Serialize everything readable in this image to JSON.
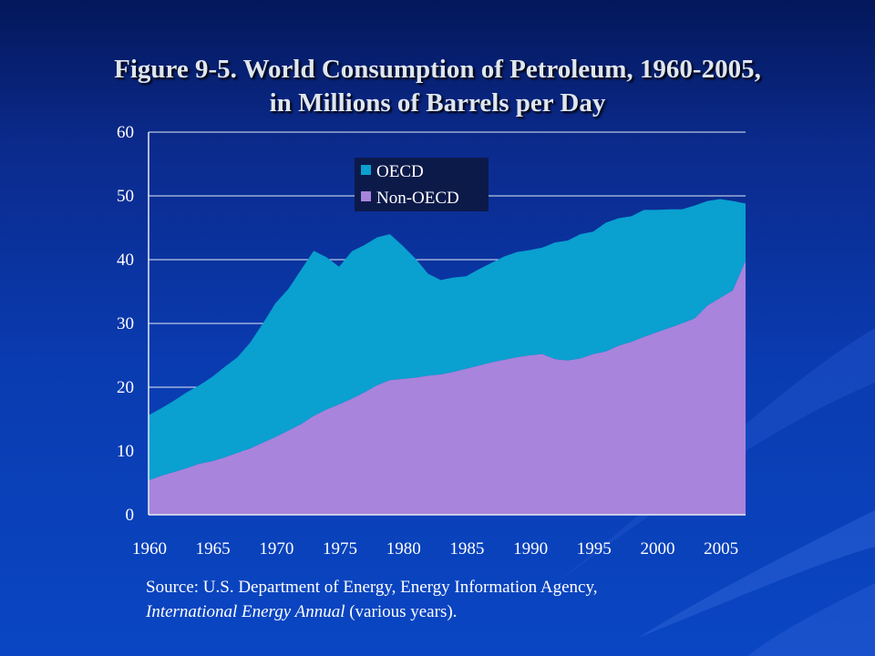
{
  "title": {
    "line1": "Figure 9-5. World Consumption of Petroleum, 1960-2005,",
    "line2": "in Millions of Barrels per Day"
  },
  "source": {
    "prefix": "Source: U.S. Department of Energy, Energy Information Agency,",
    "italic": "International Energy Annual",
    "suffix": " (various years)."
  },
  "colors": {
    "oecd": "#0aa0d0",
    "non_oecd": "#a884dc",
    "axis_text": "#ffffff",
    "gridline": "#e6ecf5"
  },
  "chart_data": {
    "type": "area",
    "stacked": true,
    "ylim": [
      0,
      60
    ],
    "y_ticks": [
      0,
      10,
      20,
      30,
      40,
      50,
      60
    ],
    "x_ticks": [
      1960,
      1965,
      1970,
      1975,
      1980,
      1985,
      1990,
      1995,
      2000,
      2005
    ],
    "xlim": [
      1960,
      2007
    ],
    "grid": true,
    "legend": {
      "position": "top-center",
      "entries": [
        "OECD",
        "Non-OECD"
      ]
    },
    "x": [
      1960,
      1961,
      1962,
      1963,
      1964,
      1965,
      1966,
      1967,
      1968,
      1969,
      1970,
      1971,
      1972,
      1973,
      1974,
      1975,
      1976,
      1977,
      1978,
      1979,
      1980,
      1981,
      1982,
      1983,
      1984,
      1985,
      1986,
      1987,
      1988,
      1989,
      1990,
      1991,
      1992,
      1993,
      1994,
      1995,
      1996,
      1997,
      1998,
      1999,
      2000,
      2001,
      2002,
      2003,
      2004,
      2005,
      2006,
      2007
    ],
    "series": [
      {
        "name": "Non-OECD",
        "values": [
          5.4,
          6.1,
          6.7,
          7.3,
          8.0,
          8.4,
          9.0,
          9.7,
          10.4,
          11.3,
          12.2,
          13.2,
          14.2,
          15.5,
          16.5,
          17.3,
          18.2,
          19.2,
          20.3,
          21.1,
          21.3,
          21.5,
          21.8,
          22.0,
          22.4,
          22.9,
          23.4,
          23.9,
          24.3,
          24.7,
          25.0,
          25.2,
          24.4,
          24.2,
          24.5,
          25.2,
          25.6,
          26.5,
          27.1,
          27.9,
          28.6,
          29.3,
          30.0,
          30.8,
          32.8,
          34.0,
          35.2,
          39.8
        ]
      },
      {
        "name": "OECD",
        "values": [
          10.2,
          10.6,
          11.2,
          11.9,
          12.3,
          13.2,
          14.2,
          15.0,
          16.6,
          18.7,
          21.0,
          22.2,
          24.2,
          25.9,
          23.9,
          21.6,
          23.1,
          23.1,
          23.2,
          22.9,
          20.9,
          18.7,
          16.0,
          14.8,
          14.8,
          14.5,
          15.1,
          15.6,
          16.2,
          16.5,
          16.5,
          16.7,
          18.3,
          18.8,
          19.5,
          19.2,
          20.2,
          20.0,
          19.7,
          19.9,
          19.2,
          18.6,
          17.9,
          17.7,
          16.4,
          15.5,
          14.0,
          9.0
        ]
      }
    ]
  }
}
